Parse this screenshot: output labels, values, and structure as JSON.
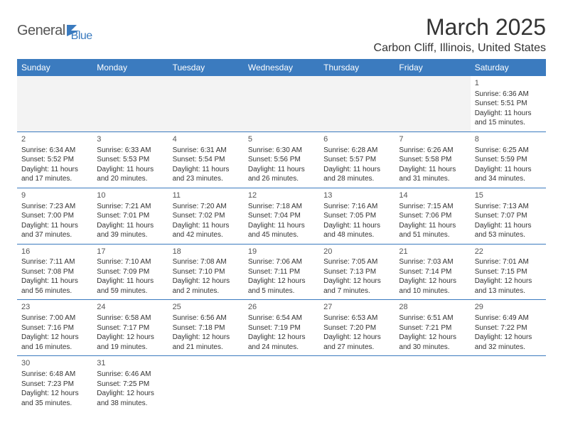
{
  "logo": {
    "text1": "General",
    "text2": "Blue"
  },
  "title": "March 2025",
  "location": "Carbon Cliff, Illinois, United States",
  "colors": {
    "header_bg": "#3b7bbf",
    "header_text": "#ffffff",
    "border": "#3b7bbf",
    "blank_bg": "#f3f3f3",
    "body_text": "#333333"
  },
  "weekdays": [
    "Sunday",
    "Monday",
    "Tuesday",
    "Wednesday",
    "Thursday",
    "Friday",
    "Saturday"
  ],
  "weeks": [
    [
      null,
      null,
      null,
      null,
      null,
      null,
      {
        "d": "1",
        "sr": "Sunrise: 6:36 AM",
        "ss": "Sunset: 5:51 PM",
        "dl1": "Daylight: 11 hours",
        "dl2": "and 15 minutes."
      }
    ],
    [
      {
        "d": "2",
        "sr": "Sunrise: 6:34 AM",
        "ss": "Sunset: 5:52 PM",
        "dl1": "Daylight: 11 hours",
        "dl2": "and 17 minutes."
      },
      {
        "d": "3",
        "sr": "Sunrise: 6:33 AM",
        "ss": "Sunset: 5:53 PM",
        "dl1": "Daylight: 11 hours",
        "dl2": "and 20 minutes."
      },
      {
        "d": "4",
        "sr": "Sunrise: 6:31 AM",
        "ss": "Sunset: 5:54 PM",
        "dl1": "Daylight: 11 hours",
        "dl2": "and 23 minutes."
      },
      {
        "d": "5",
        "sr": "Sunrise: 6:30 AM",
        "ss": "Sunset: 5:56 PM",
        "dl1": "Daylight: 11 hours",
        "dl2": "and 26 minutes."
      },
      {
        "d": "6",
        "sr": "Sunrise: 6:28 AM",
        "ss": "Sunset: 5:57 PM",
        "dl1": "Daylight: 11 hours",
        "dl2": "and 28 minutes."
      },
      {
        "d": "7",
        "sr": "Sunrise: 6:26 AM",
        "ss": "Sunset: 5:58 PM",
        "dl1": "Daylight: 11 hours",
        "dl2": "and 31 minutes."
      },
      {
        "d": "8",
        "sr": "Sunrise: 6:25 AM",
        "ss": "Sunset: 5:59 PM",
        "dl1": "Daylight: 11 hours",
        "dl2": "and 34 minutes."
      }
    ],
    [
      {
        "d": "9",
        "sr": "Sunrise: 7:23 AM",
        "ss": "Sunset: 7:00 PM",
        "dl1": "Daylight: 11 hours",
        "dl2": "and 37 minutes."
      },
      {
        "d": "10",
        "sr": "Sunrise: 7:21 AM",
        "ss": "Sunset: 7:01 PM",
        "dl1": "Daylight: 11 hours",
        "dl2": "and 39 minutes."
      },
      {
        "d": "11",
        "sr": "Sunrise: 7:20 AM",
        "ss": "Sunset: 7:02 PM",
        "dl1": "Daylight: 11 hours",
        "dl2": "and 42 minutes."
      },
      {
        "d": "12",
        "sr": "Sunrise: 7:18 AM",
        "ss": "Sunset: 7:04 PM",
        "dl1": "Daylight: 11 hours",
        "dl2": "and 45 minutes."
      },
      {
        "d": "13",
        "sr": "Sunrise: 7:16 AM",
        "ss": "Sunset: 7:05 PM",
        "dl1": "Daylight: 11 hours",
        "dl2": "and 48 minutes."
      },
      {
        "d": "14",
        "sr": "Sunrise: 7:15 AM",
        "ss": "Sunset: 7:06 PM",
        "dl1": "Daylight: 11 hours",
        "dl2": "and 51 minutes."
      },
      {
        "d": "15",
        "sr": "Sunrise: 7:13 AM",
        "ss": "Sunset: 7:07 PM",
        "dl1": "Daylight: 11 hours",
        "dl2": "and 53 minutes."
      }
    ],
    [
      {
        "d": "16",
        "sr": "Sunrise: 7:11 AM",
        "ss": "Sunset: 7:08 PM",
        "dl1": "Daylight: 11 hours",
        "dl2": "and 56 minutes."
      },
      {
        "d": "17",
        "sr": "Sunrise: 7:10 AM",
        "ss": "Sunset: 7:09 PM",
        "dl1": "Daylight: 11 hours",
        "dl2": "and 59 minutes."
      },
      {
        "d": "18",
        "sr": "Sunrise: 7:08 AM",
        "ss": "Sunset: 7:10 PM",
        "dl1": "Daylight: 12 hours",
        "dl2": "and 2 minutes."
      },
      {
        "d": "19",
        "sr": "Sunrise: 7:06 AM",
        "ss": "Sunset: 7:11 PM",
        "dl1": "Daylight: 12 hours",
        "dl2": "and 5 minutes."
      },
      {
        "d": "20",
        "sr": "Sunrise: 7:05 AM",
        "ss": "Sunset: 7:13 PM",
        "dl1": "Daylight: 12 hours",
        "dl2": "and 7 minutes."
      },
      {
        "d": "21",
        "sr": "Sunrise: 7:03 AM",
        "ss": "Sunset: 7:14 PM",
        "dl1": "Daylight: 12 hours",
        "dl2": "and 10 minutes."
      },
      {
        "d": "22",
        "sr": "Sunrise: 7:01 AM",
        "ss": "Sunset: 7:15 PM",
        "dl1": "Daylight: 12 hours",
        "dl2": "and 13 minutes."
      }
    ],
    [
      {
        "d": "23",
        "sr": "Sunrise: 7:00 AM",
        "ss": "Sunset: 7:16 PM",
        "dl1": "Daylight: 12 hours",
        "dl2": "and 16 minutes."
      },
      {
        "d": "24",
        "sr": "Sunrise: 6:58 AM",
        "ss": "Sunset: 7:17 PM",
        "dl1": "Daylight: 12 hours",
        "dl2": "and 19 minutes."
      },
      {
        "d": "25",
        "sr": "Sunrise: 6:56 AM",
        "ss": "Sunset: 7:18 PM",
        "dl1": "Daylight: 12 hours",
        "dl2": "and 21 minutes."
      },
      {
        "d": "26",
        "sr": "Sunrise: 6:54 AM",
        "ss": "Sunset: 7:19 PM",
        "dl1": "Daylight: 12 hours",
        "dl2": "and 24 minutes."
      },
      {
        "d": "27",
        "sr": "Sunrise: 6:53 AM",
        "ss": "Sunset: 7:20 PM",
        "dl1": "Daylight: 12 hours",
        "dl2": "and 27 minutes."
      },
      {
        "d": "28",
        "sr": "Sunrise: 6:51 AM",
        "ss": "Sunset: 7:21 PM",
        "dl1": "Daylight: 12 hours",
        "dl2": "and 30 minutes."
      },
      {
        "d": "29",
        "sr": "Sunrise: 6:49 AM",
        "ss": "Sunset: 7:22 PM",
        "dl1": "Daylight: 12 hours",
        "dl2": "and 32 minutes."
      }
    ],
    [
      {
        "d": "30",
        "sr": "Sunrise: 6:48 AM",
        "ss": "Sunset: 7:23 PM",
        "dl1": "Daylight: 12 hours",
        "dl2": "and 35 minutes."
      },
      {
        "d": "31",
        "sr": "Sunrise: 6:46 AM",
        "ss": "Sunset: 7:25 PM",
        "dl1": "Daylight: 12 hours",
        "dl2": "and 38 minutes."
      },
      null,
      null,
      null,
      null,
      null
    ]
  ]
}
